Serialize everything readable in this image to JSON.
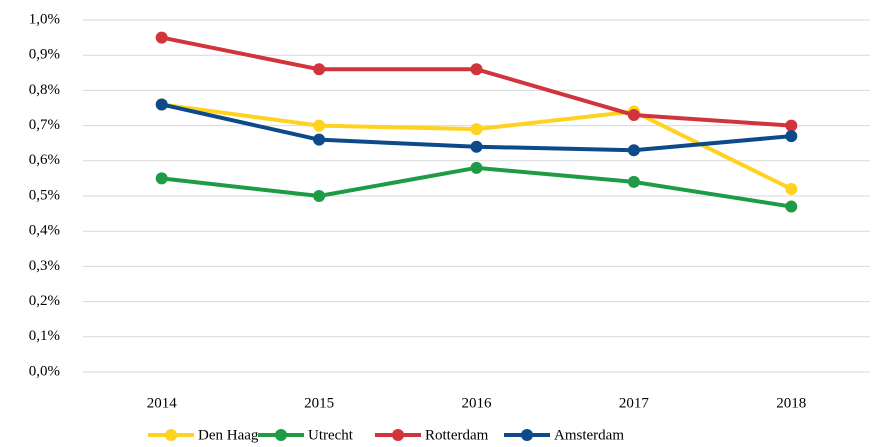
{
  "chart_data": {
    "type": "line",
    "categories": [
      "2014",
      "2015",
      "2016",
      "2017",
      "2018"
    ],
    "series": [
      {
        "name": "Den Haag",
        "color": "#FFD21F",
        "values": [
          0.76,
          0.7,
          0.69,
          0.74,
          0.52
        ]
      },
      {
        "name": "Utrecht",
        "color": "#1E9B45",
        "values": [
          0.55,
          0.5,
          0.58,
          0.54,
          0.47
        ]
      },
      {
        "name": "Rotterdam",
        "color": "#D1343A",
        "values": [
          0.95,
          0.86,
          0.86,
          0.73,
          0.7
        ]
      },
      {
        "name": "Amsterdam",
        "color": "#0C4A8A",
        "values": [
          0.76,
          0.66,
          0.64,
          0.63,
          0.67
        ]
      }
    ],
    "ylim": [
      0,
      1.0
    ],
    "yticks": [
      {
        "value": 0,
        "label": "0,0%"
      },
      {
        "value": 0.1,
        "label": "0,1%"
      },
      {
        "value": 0.2,
        "label": "0,2%"
      },
      {
        "value": 0.3,
        "label": "0,3%"
      },
      {
        "value": 0.4,
        "label": "0,4%"
      },
      {
        "value": 0.5,
        "label": "0,5%"
      },
      {
        "value": 0.6,
        "label": "0,6%"
      },
      {
        "value": 0.7,
        "label": "0,7%"
      },
      {
        "value": 0.8,
        "label": "0,8%"
      },
      {
        "value": 0.9,
        "label": "0,9%"
      },
      {
        "value": 1.0,
        "label": "1,0%"
      }
    ],
    "grid": true,
    "legend": "bottom"
  }
}
